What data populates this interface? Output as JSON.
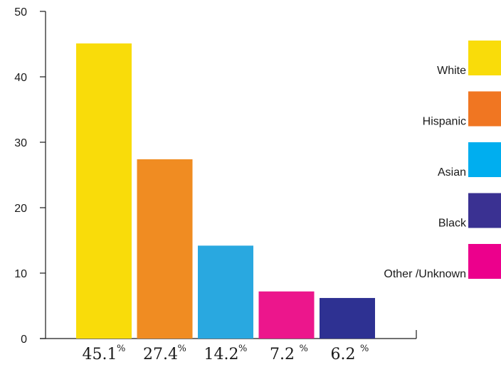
{
  "chart_data": {
    "type": "bar",
    "title": "",
    "xlabel": "",
    "ylabel": "",
    "ylim": [
      0,
      50
    ],
    "yticks": [
      0,
      10,
      20,
      30,
      40,
      50
    ],
    "grid": false,
    "legend_position": "right",
    "categories": [
      "White",
      "Hispanic",
      "Asian",
      "Other /Unknown",
      "Black"
    ],
    "values": [
      45.1,
      27.4,
      14.2,
      7.2,
      6.2
    ],
    "data_labels": [
      "45.1",
      "27.4",
      "14.2",
      "7.2",
      "6.2"
    ],
    "percent_sign": "%",
    "colors": [
      "#F9DC0A",
      "#F08C22",
      "#29A8E0",
      "#EC168C",
      "#2E3192"
    ],
    "legend": [
      {
        "label": "White",
        "color": "#F9DC0A"
      },
      {
        "label": "Hispanic",
        "color": "#F07622"
      },
      {
        "label": "Asian",
        "color": "#00AEEF"
      },
      {
        "label": "Black",
        "color": "#3A3192"
      },
      {
        "label": "Other /Unknown",
        "color": "#EC008C"
      }
    ]
  }
}
